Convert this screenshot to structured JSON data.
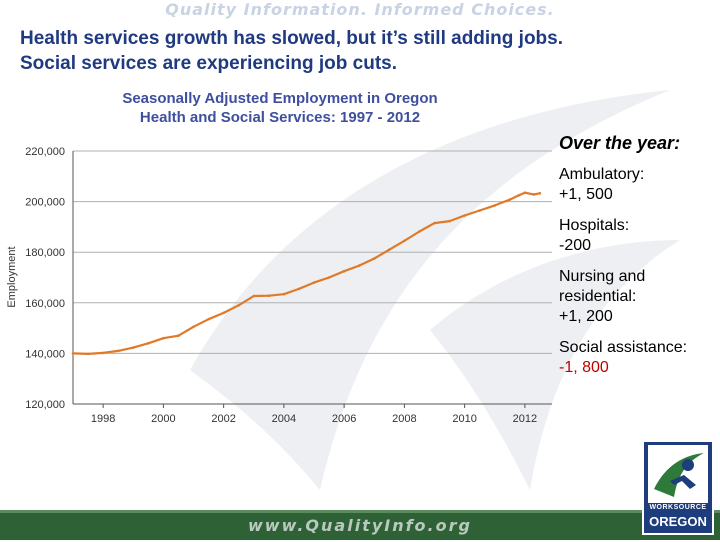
{
  "banner": {
    "tagline": "Quality Information. Informed Choices."
  },
  "headline": {
    "line1": "Health services growth has slowed, but it’s still adding jobs.",
    "line2": "Social services are experiencing job cuts."
  },
  "chart_data": {
    "type": "line",
    "title_line1": "Seasonally Adjusted Employment in Oregon",
    "title_line2": "Health and Social Services:  1997 - 2012",
    "xlabel": "",
    "ylabel": "Employment",
    "xlim": [
      1997,
      2012.9
    ],
    "ylim": [
      120000,
      220000
    ],
    "ytick_labels": [
      "220,000",
      "200,000",
      "180,000",
      "160,000",
      "140,000",
      "120,000"
    ],
    "ytick_values": [
      220000,
      200000,
      180000,
      160000,
      140000,
      120000
    ],
    "xtick_labels": [
      "1998",
      "2000",
      "2002",
      "2004",
      "2006",
      "2008",
      "2010",
      "2012"
    ],
    "xtick_values": [
      1998,
      2000,
      2002,
      2004,
      2006,
      2008,
      2010,
      2012
    ],
    "grid": "horizontal",
    "series": [
      {
        "name": "Health and Social Services employment",
        "color": "#e07a28",
        "x": [
          1997.0,
          1997.5,
          1998.0,
          1998.5,
          1999.0,
          1999.5,
          2000.0,
          2000.5,
          2001.0,
          2001.5,
          2002.0,
          2002.5,
          2003.0,
          2003.5,
          2004.0,
          2004.5,
          2005.0,
          2005.5,
          2006.0,
          2006.5,
          2007.0,
          2007.5,
          2008.0,
          2008.5,
          2009.0,
          2009.5,
          2010.0,
          2010.5,
          2011.0,
          2011.5,
          2011.8,
          2012.0,
          2012.3,
          2012.5
        ],
        "values": [
          140000,
          139800,
          140200,
          141000,
          142300,
          144000,
          146000,
          147000,
          150500,
          153500,
          156000,
          159000,
          162700,
          162800,
          163400,
          165500,
          168000,
          170000,
          172500,
          174700,
          177500,
          181000,
          184500,
          188200,
          191500,
          192300,
          194500,
          196500,
          198500,
          200800,
          202500,
          203500,
          202800,
          203300
        ]
      }
    ]
  },
  "sidebar": {
    "heading": "Over the year:",
    "ambulatory_label": "Ambulatory:",
    "ambulatory_value": "+1, 500",
    "hospitals_label": "Hospitals:",
    "hospitals_value": "-200",
    "nursing_label": "Nursing and residential:",
    "nursing_value": "+1, 200",
    "social_label": "Social assistance:",
    "social_value": "-1, 800",
    "negative_color": "#c00000"
  },
  "footer": {
    "url": "www.QualityInfo.org"
  },
  "logo": {
    "line1": "WORKSOURCE",
    "line2": "OREGON"
  }
}
